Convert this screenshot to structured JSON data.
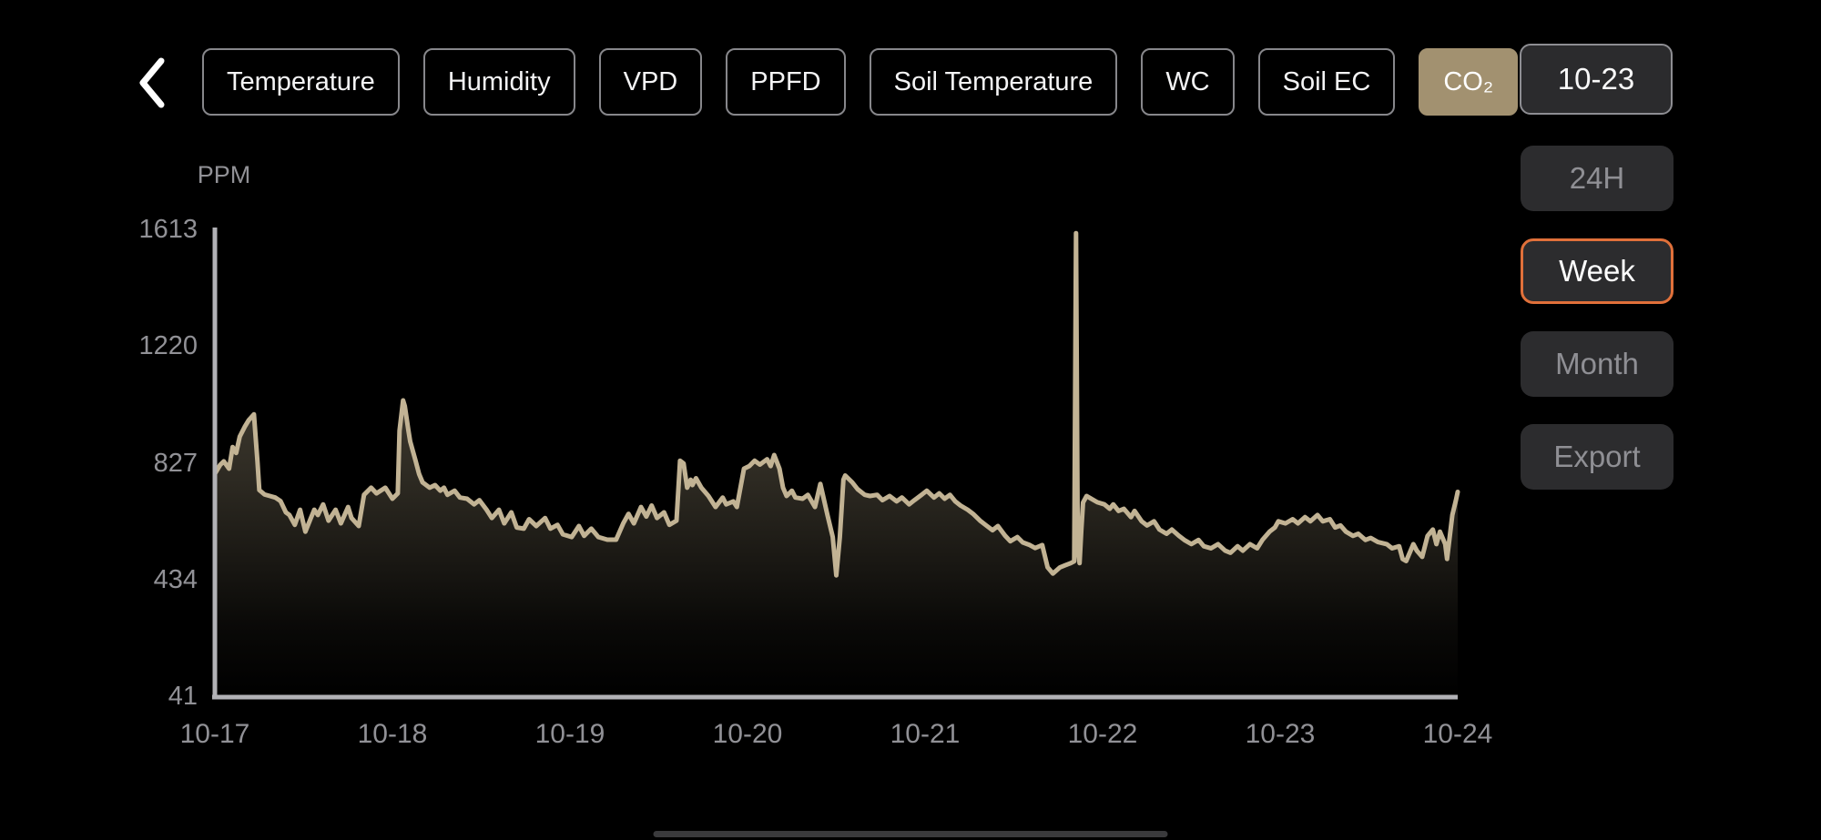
{
  "header": {
    "tabs": [
      {
        "id": "temperature",
        "label": "Temperature",
        "active": false
      },
      {
        "id": "humidity",
        "label": "Humidity",
        "active": false
      },
      {
        "id": "vpd",
        "label": "VPD",
        "active": false
      },
      {
        "id": "ppfd",
        "label": "PPFD",
        "active": false
      },
      {
        "id": "soil-temperature",
        "label": "Soil Temperature",
        "active": false
      },
      {
        "id": "wc",
        "label": "WC",
        "active": false
      },
      {
        "id": "soil-ec",
        "label": "Soil EC",
        "active": false
      },
      {
        "id": "co2",
        "label": "CO₂",
        "active": true
      }
    ],
    "date_label": "10-23"
  },
  "side_panel": {
    "buttons": [
      {
        "id": "24h",
        "label": "24H",
        "active": false
      },
      {
        "id": "week",
        "label": "Week",
        "active": true
      },
      {
        "id": "month",
        "label": "Month",
        "active": false
      },
      {
        "id": "export",
        "label": "Export",
        "active": false
      }
    ]
  },
  "colors": {
    "tab_active_bg": "#a29170",
    "week_outline": "#e0703a",
    "button_bg": "#2c2c2e",
    "button_text_dim": "#8f8f94",
    "axis": "#b2b2b6",
    "label": "#919196",
    "line": "#c2b394",
    "fill": "#c6b795"
  },
  "chart_data": {
    "type": "area",
    "title": "CO₂ over week",
    "ylabel": "PPM",
    "xlabel": "",
    "legend": false,
    "grid": false,
    "categories": [
      "10-17",
      "10-18",
      "10-19",
      "10-20",
      "10-21",
      "10-22",
      "10-23",
      "10-24"
    ],
    "y_ticks": [
      1613,
      1220,
      827,
      434,
      41
    ],
    "ylim": [
      41,
      1613
    ],
    "x_unit": "days offset from 10-17",
    "points": [
      [
        0.0,
        790
      ],
      [
        0.03,
        820
      ],
      [
        0.05,
        832
      ],
      [
        0.08,
        807
      ],
      [
        0.1,
        880
      ],
      [
        0.12,
        860
      ],
      [
        0.14,
        915
      ],
      [
        0.17,
        950
      ],
      [
        0.19,
        970
      ],
      [
        0.22,
        990
      ],
      [
        0.24,
        830
      ],
      [
        0.25,
        735
      ],
      [
        0.28,
        720
      ],
      [
        0.31,
        715
      ],
      [
        0.34,
        710
      ],
      [
        0.37,
        698
      ],
      [
        0.4,
        660
      ],
      [
        0.42,
        651
      ],
      [
        0.45,
        618
      ],
      [
        0.48,
        669
      ],
      [
        0.51,
        595
      ],
      [
        0.54,
        640
      ],
      [
        0.56,
        669
      ],
      [
        0.58,
        651
      ],
      [
        0.61,
        687
      ],
      [
        0.64,
        632
      ],
      [
        0.68,
        669
      ],
      [
        0.71,
        623
      ],
      [
        0.75,
        678
      ],
      [
        0.77,
        641
      ],
      [
        0.81,
        614
      ],
      [
        0.84,
        719
      ],
      [
        0.88,
        743
      ],
      [
        0.91,
        724
      ],
      [
        0.96,
        743
      ],
      [
        1.0,
        706
      ],
      [
        1.03,
        724
      ],
      [
        1.04,
        935
      ],
      [
        1.06,
        1037
      ],
      [
        1.07,
        1018
      ],
      [
        1.09,
        935
      ],
      [
        1.1,
        899
      ],
      [
        1.13,
        834
      ],
      [
        1.15,
        789
      ],
      [
        1.17,
        761
      ],
      [
        1.21,
        743
      ],
      [
        1.24,
        752
      ],
      [
        1.27,
        733
      ],
      [
        1.29,
        743
      ],
      [
        1.31,
        719
      ],
      [
        1.35,
        733
      ],
      [
        1.38,
        710
      ],
      [
        1.42,
        706
      ],
      [
        1.46,
        687
      ],
      [
        1.49,
        701
      ],
      [
        1.53,
        669
      ],
      [
        1.56,
        641
      ],
      [
        1.6,
        669
      ],
      [
        1.63,
        623
      ],
      [
        1.67,
        660
      ],
      [
        1.7,
        609
      ],
      [
        1.74,
        605
      ],
      [
        1.77,
        637
      ],
      [
        1.81,
        614
      ],
      [
        1.86,
        641
      ],
      [
        1.89,
        605
      ],
      [
        1.93,
        618
      ],
      [
        1.96,
        586
      ],
      [
        2.01,
        577
      ],
      [
        2.05,
        614
      ],
      [
        2.08,
        581
      ],
      [
        2.12,
        605
      ],
      [
        2.16,
        577
      ],
      [
        2.21,
        568
      ],
      [
        2.26,
        568
      ],
      [
        2.3,
        623
      ],
      [
        2.33,
        655
      ],
      [
        2.36,
        623
      ],
      [
        2.4,
        678
      ],
      [
        2.43,
        646
      ],
      [
        2.46,
        683
      ],
      [
        2.49,
        641
      ],
      [
        2.53,
        660
      ],
      [
        2.56,
        618
      ],
      [
        2.6,
        632
      ],
      [
        2.62,
        834
      ],
      [
        2.64,
        825
      ],
      [
        2.66,
        743
      ],
      [
        2.68,
        770
      ],
      [
        2.69,
        752
      ],
      [
        2.71,
        775
      ],
      [
        2.74,
        743
      ],
      [
        2.78,
        715
      ],
      [
        2.82,
        678
      ],
      [
        2.86,
        710
      ],
      [
        2.88,
        687
      ],
      [
        2.92,
        697
      ],
      [
        2.94,
        678
      ],
      [
        2.98,
        807
      ],
      [
        3.01,
        816
      ],
      [
        3.04,
        834
      ],
      [
        3.07,
        821
      ],
      [
        3.11,
        839
      ],
      [
        3.13,
        816
      ],
      [
        3.15,
        853
      ],
      [
        3.18,
        807
      ],
      [
        3.2,
        743
      ],
      [
        3.22,
        715
      ],
      [
        3.25,
        733
      ],
      [
        3.27,
        710
      ],
      [
        3.31,
        706
      ],
      [
        3.34,
        719
      ],
      [
        3.38,
        678
      ],
      [
        3.41,
        756
      ],
      [
        3.45,
        651
      ],
      [
        3.48,
        577
      ],
      [
        3.5,
        448
      ],
      [
        3.52,
        577
      ],
      [
        3.54,
        770
      ],
      [
        3.55,
        784
      ],
      [
        3.59,
        761
      ],
      [
        3.62,
        738
      ],
      [
        3.66,
        719
      ],
      [
        3.69,
        715
      ],
      [
        3.73,
        719
      ],
      [
        3.76,
        701
      ],
      [
        3.8,
        715
      ],
      [
        3.84,
        697
      ],
      [
        3.87,
        710
      ],
      [
        3.91,
        687
      ],
      [
        3.94,
        701
      ],
      [
        3.98,
        719
      ],
      [
        4.01,
        733
      ],
      [
        4.05,
        710
      ],
      [
        4.08,
        724
      ],
      [
        4.11,
        706
      ],
      [
        4.14,
        719
      ],
      [
        4.17,
        697
      ],
      [
        4.2,
        683
      ],
      [
        4.24,
        669
      ],
      [
        4.27,
        655
      ],
      [
        4.31,
        632
      ],
      [
        4.34,
        618
      ],
      [
        4.38,
        600
      ],
      [
        4.41,
        614
      ],
      [
        4.45,
        582
      ],
      [
        4.48,
        563
      ],
      [
        4.52,
        577
      ],
      [
        4.55,
        559
      ],
      [
        4.59,
        550
      ],
      [
        4.62,
        540
      ],
      [
        4.66,
        550
      ],
      [
        4.69,
        475
      ],
      [
        4.72,
        454
      ],
      [
        4.76,
        475
      ],
      [
        4.79,
        482
      ],
      [
        4.82,
        489
      ],
      [
        4.84,
        495
      ],
      [
        4.85,
        1600
      ],
      [
        4.86,
        540
      ],
      [
        4.87,
        489
      ],
      [
        4.88,
        600
      ],
      [
        4.89,
        693
      ],
      [
        4.91,
        715
      ],
      [
        4.93,
        708
      ],
      [
        4.97,
        694
      ],
      [
        5.01,
        687
      ],
      [
        5.04,
        672
      ],
      [
        5.06,
        687
      ],
      [
        5.09,
        665
      ],
      [
        5.12,
        672
      ],
      [
        5.16,
        644
      ],
      [
        5.18,
        665
      ],
      [
        5.22,
        630
      ],
      [
        5.25,
        616
      ],
      [
        5.29,
        630
      ],
      [
        5.32,
        602
      ],
      [
        5.36,
        588
      ],
      [
        5.39,
        602
      ],
      [
        5.43,
        581
      ],
      [
        5.46,
        567
      ],
      [
        5.5,
        553
      ],
      [
        5.54,
        567
      ],
      [
        5.57,
        546
      ],
      [
        5.61,
        539
      ],
      [
        5.65,
        553
      ],
      [
        5.69,
        531
      ],
      [
        5.72,
        524
      ],
      [
        5.76,
        546
      ],
      [
        5.79,
        531
      ],
      [
        5.83,
        553
      ],
      [
        5.87,
        539
      ],
      [
        5.9,
        567
      ],
      [
        5.94,
        595
      ],
      [
        5.97,
        609
      ],
      [
        5.99,
        630
      ],
      [
        6.03,
        623
      ],
      [
        6.07,
        637
      ],
      [
        6.1,
        623
      ],
      [
        6.14,
        644
      ],
      [
        6.17,
        630
      ],
      [
        6.21,
        651
      ],
      [
        6.24,
        630
      ],
      [
        6.28,
        637
      ],
      [
        6.31,
        609
      ],
      [
        6.34,
        616
      ],
      [
        6.37,
        595
      ],
      [
        6.41,
        581
      ],
      [
        6.44,
        588
      ],
      [
        6.48,
        567
      ],
      [
        6.51,
        574
      ],
      [
        6.55,
        560
      ],
      [
        6.6,
        553
      ],
      [
        6.63,
        539
      ],
      [
        6.67,
        546
      ],
      [
        6.69,
        503
      ],
      [
        6.71,
        496
      ],
      [
        6.75,
        553
      ],
      [
        6.77,
        531
      ],
      [
        6.8,
        510
      ],
      [
        6.83,
        581
      ],
      [
        6.86,
        602
      ],
      [
        6.88,
        553
      ],
      [
        6.9,
        595
      ],
      [
        6.93,
        553
      ],
      [
        6.94,
        503
      ],
      [
        6.97,
        651
      ],
      [
        6.99,
        700
      ],
      [
        7.0,
        729
      ]
    ]
  }
}
